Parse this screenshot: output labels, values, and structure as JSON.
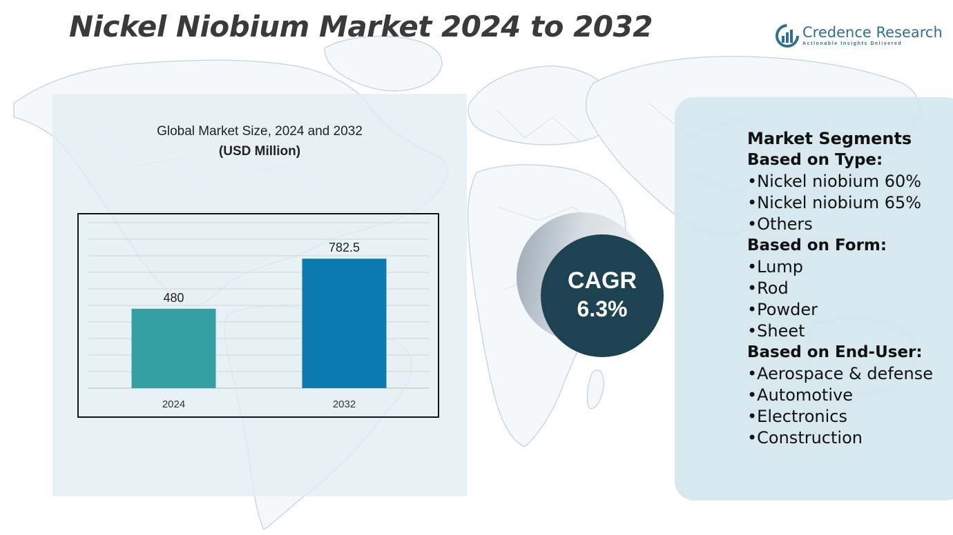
{
  "title": "Nickel Niobium Market 2024 to 2032",
  "brand": {
    "name": "Credence Research",
    "tagline": "Actionable Insights Delivered"
  },
  "chart_heading": {
    "line1": "Global Market Size, 2024 and 2032",
    "line2": "(USD Million)"
  },
  "chart_data": {
    "type": "bar",
    "title": "Global Market Size, 2024 and 2032",
    "ylabel": "USD Million",
    "xlabel": "",
    "categories": [
      "2024",
      "2032"
    ],
    "values": [
      480,
      782.5
    ],
    "value_labels": [
      "480",
      "782.5"
    ],
    "ylim": [
      0,
      1000
    ],
    "grid": true,
    "colors": [
      "#35a0a4",
      "#0a7aaf"
    ]
  },
  "cagr": {
    "label": "CAGR",
    "value": "6.3%"
  },
  "segments": {
    "title": "Market Segments",
    "groups": [
      {
        "heading": "Based on Type:",
        "items": [
          "Nickel niobium 60%",
          "Nickel niobium 65%",
          "Others"
        ]
      },
      {
        "heading": "Based on Form:",
        "items": [
          "Lump",
          "Rod",
          "Powder",
          "Sheet"
        ]
      },
      {
        "heading": "Based on End-User:",
        "items": [
          "Aerospace & defense",
          "Automotive",
          "Electronics",
          "Construction"
        ]
      }
    ]
  },
  "colors": {
    "title_text": "#3a3a3a",
    "cagr_circle": "#1d4352",
    "panel_left": "#e2edf4",
    "panel_right": "#d4e6ee"
  }
}
